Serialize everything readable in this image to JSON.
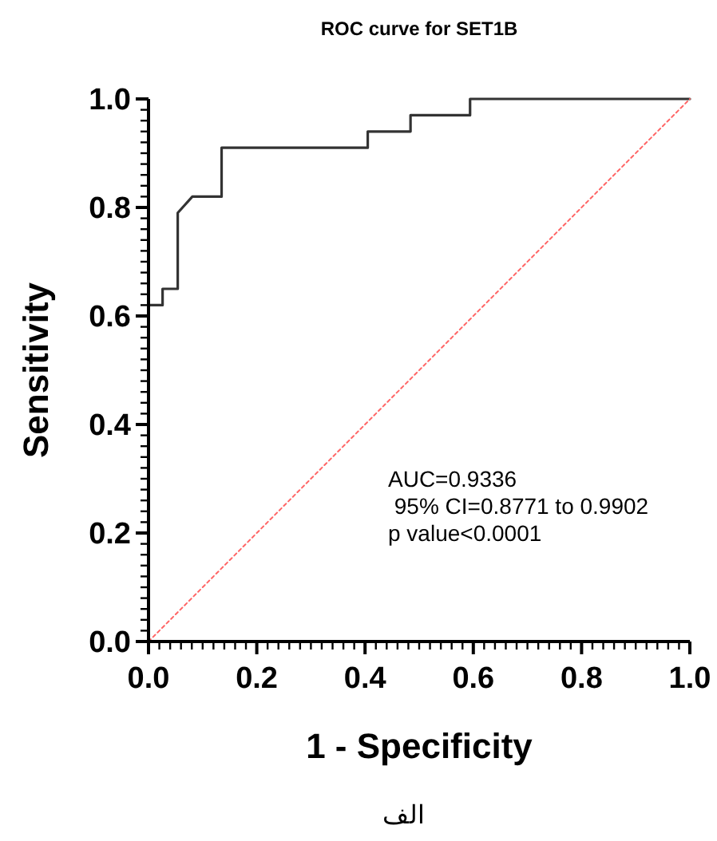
{
  "chart_data": {
    "type": "line",
    "title": "ROC curve for SET1B",
    "xlabel": "1 - Specificity",
    "ylabel": "Sensitivity",
    "xlim": [
      0,
      1
    ],
    "ylim": [
      0,
      1
    ],
    "xticks": [
      {
        "value": 0,
        "label": "0.0"
      },
      {
        "value": 0.02,
        "label": null
      },
      {
        "value": 0.04,
        "label": null
      },
      {
        "value": 0.06,
        "label": null
      },
      {
        "value": 0.08,
        "label": null
      },
      {
        "value": 0.1,
        "label": null
      },
      {
        "value": 0.12,
        "label": null
      },
      {
        "value": 0.14,
        "label": null
      },
      {
        "value": 0.16,
        "label": null
      },
      {
        "value": 0.18,
        "label": null
      },
      {
        "value": 0.2,
        "label": "0.2"
      },
      {
        "value": 0.22,
        "label": null
      },
      {
        "value": 0.24,
        "label": null
      },
      {
        "value": 0.26,
        "label": null
      },
      {
        "value": 0.28,
        "label": null
      },
      {
        "value": 0.3,
        "label": null
      },
      {
        "value": 0.32,
        "label": null
      },
      {
        "value": 0.34,
        "label": null
      },
      {
        "value": 0.36,
        "label": null
      },
      {
        "value": 0.38,
        "label": null
      },
      {
        "value": 0.4,
        "label": "0.4"
      },
      {
        "value": 0.42,
        "label": null
      },
      {
        "value": 0.44,
        "label": null
      },
      {
        "value": 0.46,
        "label": null
      },
      {
        "value": 0.48,
        "label": null
      },
      {
        "value": 0.5,
        "label": null
      },
      {
        "value": 0.52,
        "label": null
      },
      {
        "value": 0.54,
        "label": null
      },
      {
        "value": 0.56,
        "label": null
      },
      {
        "value": 0.58,
        "label": null
      },
      {
        "value": 0.6,
        "label": "0.6"
      },
      {
        "value": 0.62,
        "label": null
      },
      {
        "value": 0.64,
        "label": null
      },
      {
        "value": 0.66,
        "label": null
      },
      {
        "value": 0.68,
        "label": null
      },
      {
        "value": 0.7,
        "label": null
      },
      {
        "value": 0.72,
        "label": null
      },
      {
        "value": 0.74,
        "label": null
      },
      {
        "value": 0.76,
        "label": null
      },
      {
        "value": 0.78,
        "label": null
      },
      {
        "value": 0.8,
        "label": "0.8"
      },
      {
        "value": 0.82,
        "label": null
      },
      {
        "value": 0.84,
        "label": null
      },
      {
        "value": 0.86,
        "label": null
      },
      {
        "value": 0.88,
        "label": null
      },
      {
        "value": 0.9,
        "label": null
      },
      {
        "value": 0.92,
        "label": null
      },
      {
        "value": 0.94,
        "label": null
      },
      {
        "value": 0.96,
        "label": null
      },
      {
        "value": 0.98,
        "label": null
      },
      {
        "value": 1,
        "label": "1.0"
      }
    ],
    "yticks": [
      {
        "value": 0,
        "label": "0.0"
      },
      {
        "value": 0.02,
        "label": null
      },
      {
        "value": 0.04,
        "label": null
      },
      {
        "value": 0.06,
        "label": null
      },
      {
        "value": 0.08,
        "label": null
      },
      {
        "value": 0.1,
        "label": null
      },
      {
        "value": 0.12,
        "label": null
      },
      {
        "value": 0.14,
        "label": null
      },
      {
        "value": 0.16,
        "label": null
      },
      {
        "value": 0.18,
        "label": null
      },
      {
        "value": 0.2,
        "label": "0.2"
      },
      {
        "value": 0.22,
        "label": null
      },
      {
        "value": 0.24,
        "label": null
      },
      {
        "value": 0.26,
        "label": null
      },
      {
        "value": 0.28,
        "label": null
      },
      {
        "value": 0.3,
        "label": null
      },
      {
        "value": 0.32,
        "label": null
      },
      {
        "value": 0.34,
        "label": null
      },
      {
        "value": 0.36,
        "label": null
      },
      {
        "value": 0.38,
        "label": null
      },
      {
        "value": 0.4,
        "label": "0.4"
      },
      {
        "value": 0.42,
        "label": null
      },
      {
        "value": 0.44,
        "label": null
      },
      {
        "value": 0.46,
        "label": null
      },
      {
        "value": 0.48,
        "label": null
      },
      {
        "value": 0.5,
        "label": null
      },
      {
        "value": 0.52,
        "label": null
      },
      {
        "value": 0.54,
        "label": null
      },
      {
        "value": 0.56,
        "label": null
      },
      {
        "value": 0.58,
        "label": null
      },
      {
        "value": 0.6,
        "label": "0.6"
      },
      {
        "value": 0.62,
        "label": null
      },
      {
        "value": 0.64,
        "label": null
      },
      {
        "value": 0.66,
        "label": null
      },
      {
        "value": 0.68,
        "label": null
      },
      {
        "value": 0.7,
        "label": null
      },
      {
        "value": 0.72,
        "label": null
      },
      {
        "value": 0.74,
        "label": null
      },
      {
        "value": 0.76,
        "label": null
      },
      {
        "value": 0.78,
        "label": null
      },
      {
        "value": 0.8,
        "label": "0.8"
      },
      {
        "value": 0.82,
        "label": null
      },
      {
        "value": 0.84,
        "label": null
      },
      {
        "value": 0.86,
        "label": null
      },
      {
        "value": 0.88,
        "label": null
      },
      {
        "value": 0.9,
        "label": null
      },
      {
        "value": 0.92,
        "label": null
      },
      {
        "value": 0.94,
        "label": null
      },
      {
        "value": 0.96,
        "label": null
      },
      {
        "value": 0.98,
        "label": null
      },
      {
        "value": 1,
        "label": "1.0"
      }
    ],
    "series": [
      {
        "color": "#333333",
        "line_style": "solid",
        "x": [
          0,
          0,
          0.026,
          0.026,
          0.054,
          0.054,
          0.081,
          0.135,
          0.135,
          0.405,
          0.405,
          0.484,
          0.484,
          0.594,
          0.594,
          1
        ],
        "values": [
          0,
          0.62,
          0.62,
          0.65,
          0.65,
          0.79,
          0.82,
          0.82,
          0.91,
          0.91,
          0.94,
          0.94,
          0.97,
          0.97,
          1,
          1
        ]
      },
      {
        "color": "#ff6666",
        "line_style": "dotted",
        "x": [
          0,
          1
        ],
        "values": [
          0,
          1
        ]
      }
    ],
    "annotations": [
      "AUC=0.9336",
      " 95% CI=0.8771 to 0.9902",
      "p value<0.0001",
      "الف"
    ]
  }
}
